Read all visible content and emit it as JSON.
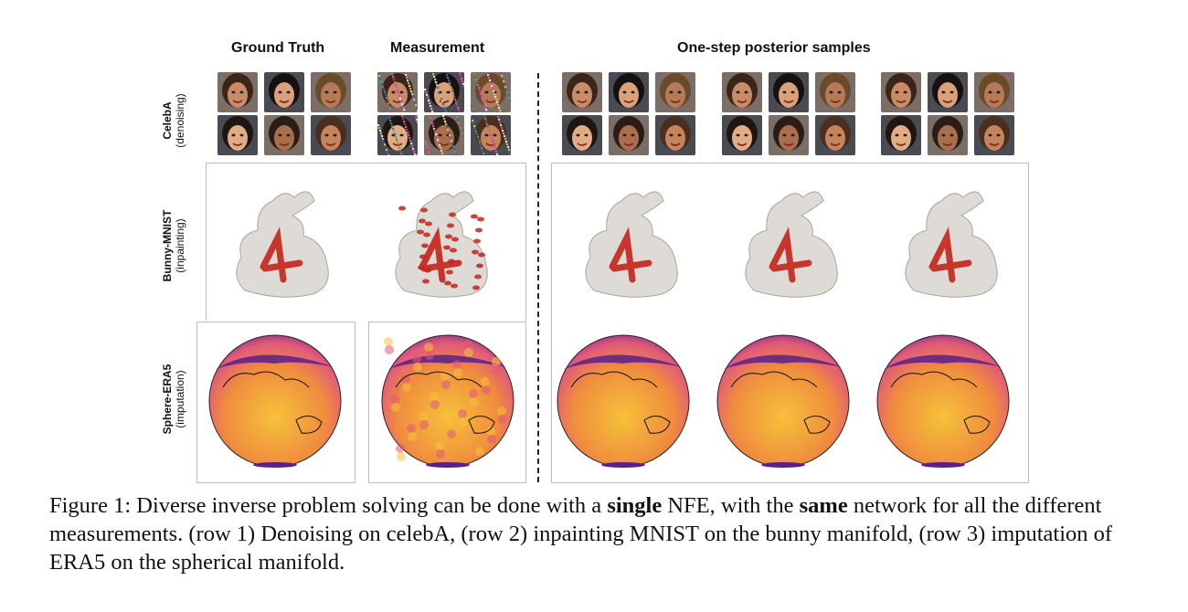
{
  "headers": {
    "ground_truth": "Ground Truth",
    "measurement": "Measurement",
    "posterior": "One-step posterior samples"
  },
  "rows": [
    {
      "name": "CelebA",
      "task": "(denoising)"
    },
    {
      "name": "Bunny-MNIST",
      "task": "(inpainting)"
    },
    {
      "name": "Sphere-ERA5",
      "task": "(imputation)"
    }
  ],
  "caption": {
    "prefix": "Figure 1: Diverse inverse problem solving can be done with a",
    "bold1": "single",
    "mid1": "NFE, with the",
    "bold2": "same",
    "suffix": "network for all the different measurements. (row 1) Denoising on celebA, (row 2) inpainting MNIST on the bunny manifold, (row 3) imputation of ERA5 on the spherical manifold."
  },
  "colors": {
    "skin": [
      "#c98b66",
      "#d9a07a",
      "#b57a56",
      "#e0ad87",
      "#a96e4b",
      "#c4845c"
    ],
    "hair": [
      "#3b2418",
      "#161010",
      "#6a4a2a",
      "#1f1511",
      "#2a1d17",
      "#4a2f1e"
    ],
    "bunny": "#dedbd6",
    "bunny_stripe": "#c4231b",
    "sphere_hot": "#f5c23a",
    "sphere_mid": "#e05a7a",
    "sphere_cold": "#5a1f8a"
  }
}
